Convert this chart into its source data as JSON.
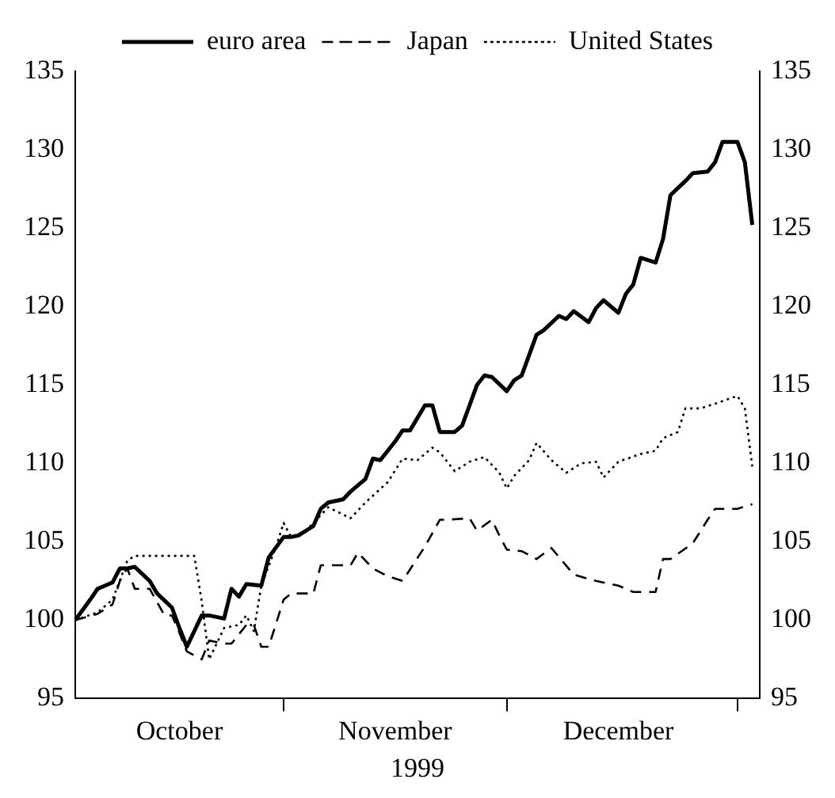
{
  "chart_data": {
    "type": "line",
    "xlabel": "1999",
    "legend": "top",
    "marker": "none",
    "grid": false,
    "xlim": [
      "1999-10-04",
      "2000-01-04"
    ],
    "xticks": [
      {
        "value": "1999-10-18",
        "label": "October"
      },
      {
        "value": "1999-11-01",
        "label": null
      },
      {
        "value": "1999-11-16",
        "label": "November"
      },
      {
        "value": "1999-12-01",
        "label": null
      },
      {
        "value": "1999-12-16",
        "label": "December"
      },
      {
        "value": "2000-01-01",
        "label": null
      }
    ],
    "ylim": [
      95,
      135
    ],
    "yticks": [
      95,
      100,
      105,
      110,
      115,
      120,
      125,
      130,
      135
    ],
    "y2lim": [
      95,
      135
    ],
    "y2ticks": [
      95,
      100,
      105,
      110,
      115,
      120,
      125,
      130,
      135
    ],
    "series": [
      {
        "name": "euro area",
        "color": "#000000",
        "line_style": "solid",
        "x": [
          "1999-10-04",
          "1999-10-06",
          "1999-10-07",
          "1999-10-09",
          "1999-10-10",
          "1999-10-11",
          "1999-10-12",
          "1999-10-14",
          "1999-10-15",
          "1999-10-17",
          "1999-10-18",
          "1999-10-19",
          "1999-10-21",
          "1999-10-22",
          "1999-10-24",
          "1999-10-25",
          "1999-10-26",
          "1999-10-27",
          "1999-10-29",
          "1999-10-30",
          "1999-11-01",
          "1999-11-02",
          "1999-11-03",
          "1999-11-05",
          "1999-11-06",
          "1999-11-07",
          "1999-11-09",
          "1999-11-10",
          "1999-11-12",
          "1999-11-13",
          "1999-11-14",
          "1999-11-16",
          "1999-11-17",
          "1999-11-18",
          "1999-11-20",
          "1999-11-21",
          "1999-11-22",
          "1999-11-24",
          "1999-11-25",
          "1999-11-27",
          "1999-11-28",
          "1999-11-29",
          "1999-12-01",
          "1999-12-02",
          "1999-12-03",
          "1999-12-05",
          "1999-12-06",
          "1999-12-08",
          "1999-12-09",
          "1999-12-10",
          "1999-12-12",
          "1999-12-13",
          "1999-12-14",
          "1999-12-16",
          "1999-12-17",
          "1999-12-18",
          "1999-12-19",
          "1999-12-21",
          "1999-12-22",
          "1999-12-23",
          "1999-12-25",
          "1999-12-26",
          "1999-12-28",
          "1999-12-29",
          "1999-12-30",
          "2000-01-01",
          "2000-01-02",
          "2000-01-03"
        ],
        "values": [
          100,
          101.3,
          102,
          102.4,
          103.3,
          103.3,
          103.4,
          102.5,
          101.7,
          100.8,
          99.5,
          98.3,
          100.3,
          100.3,
          100.1,
          102,
          101.5,
          102.3,
          102.2,
          104,
          105.3,
          105.3,
          105.4,
          106,
          107.1,
          107.5,
          107.7,
          108.2,
          109,
          110.3,
          110.2,
          111.4,
          112.1,
          112.1,
          113.7,
          113.7,
          112,
          112,
          112.4,
          115,
          115.6,
          115.5,
          114.6,
          115.3,
          115.6,
          118.2,
          118.5,
          119.4,
          119.2,
          119.7,
          119,
          119.9,
          120.4,
          119.6,
          120.8,
          121.4,
          123.1,
          122.8,
          124.3,
          127.1,
          128,
          128.5,
          128.6,
          129.2,
          130.5,
          130.5,
          129.2,
          125.2
        ]
      },
      {
        "name": "Japan",
        "color": "#000000",
        "line_style": "dashed",
        "x": [
          "1999-10-04",
          "1999-10-07",
          "1999-10-09",
          "1999-10-10",
          "1999-10-11",
          "1999-10-12",
          "1999-10-14",
          "1999-10-16",
          "1999-10-17",
          "1999-10-18",
          "1999-10-19",
          "1999-10-21",
          "1999-10-22",
          "1999-10-24",
          "1999-10-25",
          "1999-10-27",
          "1999-10-28",
          "1999-10-29",
          "1999-10-30",
          "1999-11-01",
          "1999-11-02",
          "1999-11-05",
          "1999-11-06",
          "1999-11-10",
          "1999-11-11",
          "1999-11-13",
          "1999-11-15",
          "1999-11-17",
          "1999-11-20",
          "1999-11-22",
          "1999-11-23",
          "1999-11-26",
          "1999-11-27",
          "1999-11-29",
          "1999-11-30",
          "1999-12-01",
          "1999-12-03",
          "1999-12-05",
          "1999-12-07",
          "1999-12-10",
          "1999-12-13",
          "1999-12-16",
          "1999-12-18",
          "1999-12-21",
          "1999-12-22",
          "1999-12-23",
          "1999-12-26",
          "1999-12-28",
          "1999-12-29",
          "2000-01-01",
          "2000-01-03"
        ],
        "values": [
          100,
          100.4,
          101,
          102.5,
          103.3,
          102,
          102,
          100.3,
          100.3,
          99.2,
          98,
          97.5,
          98.7,
          98.5,
          98.5,
          99.7,
          99.7,
          98.3,
          98.3,
          101.3,
          101.7,
          101.7,
          103.5,
          103.5,
          104.3,
          103.3,
          102.8,
          102.5,
          104.7,
          106.4,
          106.4,
          106.5,
          105.7,
          106.4,
          105.4,
          104.5,
          104.4,
          103.9,
          104.6,
          102.9,
          102.5,
          102.2,
          101.8,
          101.8,
          103.9,
          103.9,
          104.9,
          106.4,
          107.1,
          107.1,
          107.4
        ]
      },
      {
        "name": "United States",
        "color": "#000000",
        "line_style": "dotted",
        "x": [
          "1999-10-04",
          "1999-10-07",
          "1999-10-09",
          "1999-10-11",
          "1999-10-12",
          "1999-10-16",
          "1999-10-20",
          "1999-10-21",
          "1999-10-22",
          "1999-10-23",
          "1999-10-24",
          "1999-10-26",
          "1999-10-27",
          "1999-10-28",
          "1999-10-29",
          "1999-10-31",
          "1999-11-01",
          "1999-11-02",
          "1999-11-04",
          "1999-11-06",
          "1999-11-07",
          "1999-11-10",
          "1999-11-12",
          "1999-11-15",
          "1999-11-17",
          "1999-11-19",
          "1999-11-21",
          "1999-11-22",
          "1999-11-24",
          "1999-11-26",
          "1999-11-28",
          "1999-11-30",
          "1999-12-01",
          "1999-12-02",
          "1999-12-04",
          "1999-12-05",
          "1999-12-07",
          "1999-12-09",
          "1999-12-11",
          "1999-12-13",
          "1999-12-14",
          "1999-12-16",
          "1999-12-19",
          "1999-12-21",
          "1999-12-22",
          "1999-12-24",
          "1999-12-25",
          "1999-12-27",
          "1999-12-29",
          "2000-01-01",
          "2000-01-02",
          "2000-01-03"
        ],
        "values": [
          100,
          100.5,
          101.3,
          103.8,
          104.1,
          104.1,
          104.1,
          101.2,
          97.5,
          98.5,
          99.5,
          99.7,
          100.3,
          99.3,
          102.2,
          104.7,
          106.2,
          105.3,
          105.7,
          106.7,
          107.2,
          106.5,
          107.5,
          108.8,
          110.3,
          110.2,
          111,
          110.7,
          109.5,
          110.1,
          110.4,
          109.4,
          108.4,
          109.2,
          110.2,
          111.3,
          110.2,
          109.4,
          110,
          110.1,
          109.1,
          110.1,
          110.6,
          110.8,
          111.6,
          112,
          113.5,
          113.5,
          113.8,
          114.3,
          113.5,
          109.8
        ]
      }
    ]
  }
}
